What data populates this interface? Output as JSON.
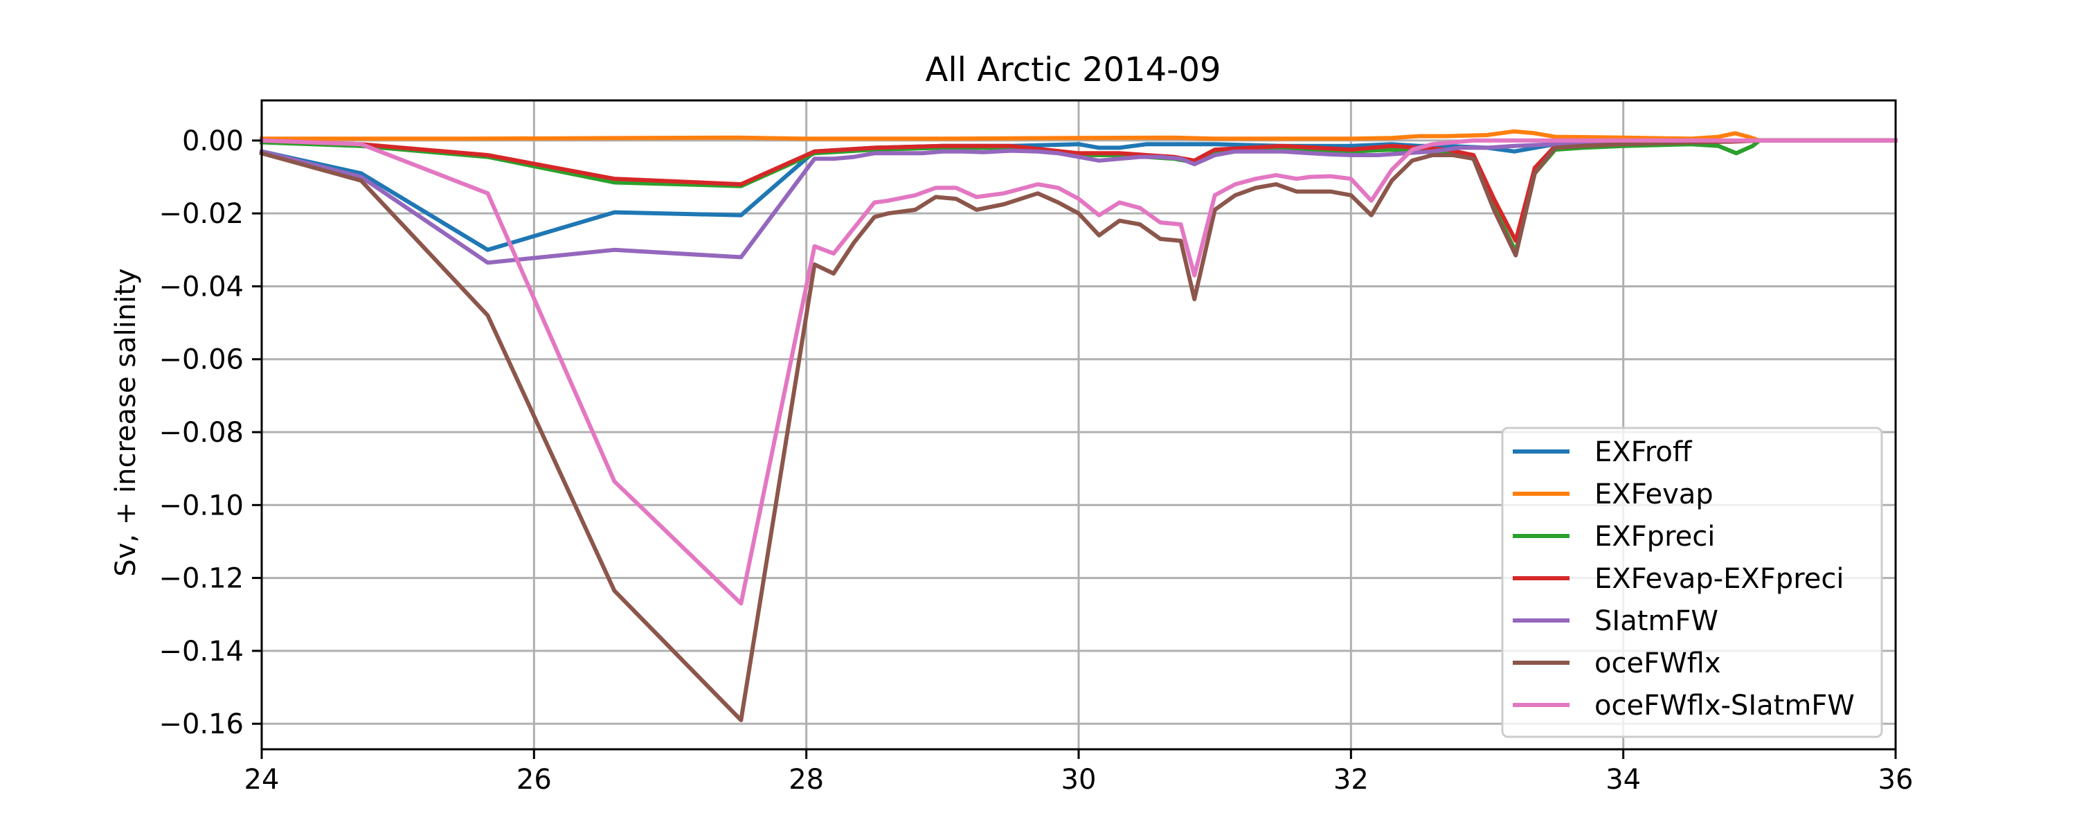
{
  "chart_data": {
    "type": "line",
    "title": "All Arctic 2014-09",
    "xlabel": "",
    "ylabel": "Sv, + increase salinity",
    "xlim": [
      24,
      36
    ],
    "ylim": [
      -0.167,
      0.011
    ],
    "xticks": [
      24,
      26,
      28,
      30,
      32,
      34,
      36
    ],
    "xtick_labels": [
      "24",
      "26",
      "28",
      "30",
      "32",
      "34",
      "36"
    ],
    "yticks": [
      0.0,
      -0.02,
      -0.04,
      -0.06,
      -0.08,
      -0.1,
      -0.12,
      -0.14,
      -0.16
    ],
    "ytick_labels": [
      "0.00",
      "−0.02",
      "−0.04",
      "−0.06",
      "−0.08",
      "−0.10",
      "−0.12",
      "−0.14",
      "−0.16"
    ],
    "grid": true,
    "legend_position": "lower-right",
    "series": [
      {
        "name": "EXFroff",
        "color": "#1f77b4",
        "x": [
          24.0,
          24.73,
          25.66,
          26.59,
          27.52,
          28.06,
          28.5,
          29.0,
          29.5,
          30.0,
          30.15,
          30.3,
          30.5,
          30.7,
          31.0,
          31.5,
          32.0,
          32.3,
          32.5,
          32.7,
          33.0,
          33.2,
          33.5,
          33.7,
          34.0,
          34.5,
          35.0,
          36.0
        ],
        "values": [
          -0.003,
          -0.009,
          -0.03,
          -0.0197,
          -0.0205,
          -0.003,
          -0.002,
          -0.0015,
          -0.0015,
          -0.001,
          -0.002,
          -0.002,
          -0.001,
          -0.001,
          -0.001,
          -0.0015,
          -0.0015,
          -0.001,
          -0.0015,
          -0.0015,
          -0.002,
          -0.003,
          -0.001,
          -0.001,
          -0.0005,
          -0.0003,
          0.0,
          0.0
        ]
      },
      {
        "name": "EXFevap",
        "color": "#ff7f0e",
        "x": [
          24.0,
          25.5,
          27.5,
          28.0,
          29.0,
          30.0,
          30.7,
          31.0,
          32.0,
          32.3,
          32.5,
          32.7,
          33.0,
          33.2,
          33.35,
          33.5,
          34.0,
          34.5,
          34.7,
          34.82,
          34.92,
          35.0,
          36.0
        ],
        "values": [
          0.0005,
          0.0005,
          0.0008,
          0.0005,
          0.0005,
          0.0007,
          0.0008,
          0.0005,
          0.0005,
          0.0007,
          0.0012,
          0.0012,
          0.0015,
          0.0025,
          0.002,
          0.001,
          0.0008,
          0.0005,
          0.001,
          0.002,
          0.001,
          0.0,
          0.0
        ]
      },
      {
        "name": "EXFpreci",
        "color": "#2ca02c",
        "x": [
          24.0,
          24.73,
          25.66,
          26.59,
          27.52,
          28.06,
          28.5,
          29.0,
          29.5,
          30.0,
          30.3,
          30.7,
          30.85,
          31.0,
          31.5,
          32.0,
          32.3,
          32.5,
          32.7,
          32.9,
          33.05,
          33.21,
          33.35,
          33.5,
          33.7,
          34.0,
          34.5,
          34.7,
          34.83,
          34.95,
          35.0,
          36.0
        ],
        "values": [
          -0.0005,
          -0.0015,
          -0.0045,
          -0.0115,
          -0.0125,
          -0.0035,
          -0.0025,
          -0.002,
          -0.002,
          -0.004,
          -0.004,
          -0.005,
          -0.006,
          -0.003,
          -0.002,
          -0.003,
          -0.0025,
          -0.003,
          -0.0035,
          -0.005,
          -0.018,
          -0.0305,
          -0.009,
          -0.0025,
          -0.002,
          -0.0015,
          -0.001,
          -0.0015,
          -0.0035,
          -0.0015,
          0.0,
          0.0
        ]
      },
      {
        "name": "EXFevap-EXFpreci",
        "color": "#d62728",
        "x": [
          24.0,
          24.73,
          25.66,
          26.59,
          27.52,
          28.06,
          28.5,
          29.0,
          29.5,
          30.0,
          30.3,
          30.7,
          30.85,
          31.0,
          31.5,
          32.0,
          32.3,
          32.5,
          32.7,
          32.9,
          33.05,
          33.21,
          33.35,
          33.5,
          33.7,
          34.0,
          34.5,
          34.8,
          35.0,
          36.0
        ],
        "values": [
          0.0,
          -0.001,
          -0.004,
          -0.0105,
          -0.012,
          -0.003,
          -0.002,
          -0.0015,
          -0.0015,
          -0.0035,
          -0.0035,
          -0.0045,
          -0.0055,
          -0.0025,
          -0.0015,
          -0.0025,
          -0.0015,
          -0.002,
          -0.0025,
          -0.004,
          -0.016,
          -0.0275,
          -0.0075,
          -0.0015,
          -0.001,
          -0.0008,
          -0.0005,
          -0.0003,
          0.0,
          0.0
        ]
      },
      {
        "name": "SIatmFW",
        "color": "#9467bd",
        "x": [
          24.0,
          24.73,
          25.66,
          26.59,
          27.52,
          28.06,
          28.2,
          28.35,
          28.5,
          28.7,
          28.85,
          29.0,
          29.15,
          29.3,
          29.5,
          29.7,
          29.85,
          30.0,
          30.15,
          30.3,
          30.45,
          30.6,
          30.75,
          30.85,
          31.0,
          31.15,
          31.3,
          31.5,
          31.7,
          31.85,
          32.0,
          32.2,
          32.4,
          32.6,
          32.8,
          33.0,
          33.2,
          33.5,
          34.0,
          34.5,
          35.0,
          36.0
        ],
        "values": [
          -0.003,
          -0.01,
          -0.0335,
          -0.03,
          -0.032,
          -0.005,
          -0.005,
          -0.0045,
          -0.0035,
          -0.0035,
          -0.0035,
          -0.003,
          -0.003,
          -0.0032,
          -0.0028,
          -0.003,
          -0.0035,
          -0.0045,
          -0.0055,
          -0.005,
          -0.0045,
          -0.0045,
          -0.005,
          -0.0065,
          -0.004,
          -0.003,
          -0.003,
          -0.003,
          -0.0035,
          -0.0038,
          -0.004,
          -0.004,
          -0.0035,
          -0.003,
          -0.002,
          -0.002,
          -0.0015,
          -0.001,
          -0.0008,
          -0.0005,
          0.0,
          0.0
        ]
      },
      {
        "name": "oceFWflx",
        "color": "#8c564b",
        "x": [
          24.0,
          24.73,
          25.66,
          26.59,
          27.52,
          28.06,
          28.2,
          28.35,
          28.5,
          28.6,
          28.8,
          28.95,
          29.1,
          29.25,
          29.45,
          29.7,
          29.85,
          30.0,
          30.15,
          30.3,
          30.45,
          30.6,
          30.75,
          30.85,
          31.0,
          31.15,
          31.3,
          31.45,
          31.6,
          31.7,
          31.85,
          32.0,
          32.15,
          32.3,
          32.45,
          32.6,
          32.75,
          32.9,
          33.05,
          33.21,
          33.35,
          33.5,
          33.7,
          34.0,
          34.5,
          35.0,
          36.0
        ],
        "values": [
          -0.0035,
          -0.011,
          -0.048,
          -0.1235,
          -0.159,
          -0.034,
          -0.0365,
          -0.028,
          -0.021,
          -0.02,
          -0.019,
          -0.0155,
          -0.016,
          -0.019,
          -0.0175,
          -0.0145,
          -0.017,
          -0.02,
          -0.026,
          -0.022,
          -0.023,
          -0.027,
          -0.0275,
          -0.0435,
          -0.019,
          -0.015,
          -0.013,
          -0.012,
          -0.014,
          -0.014,
          -0.014,
          -0.015,
          -0.0205,
          -0.011,
          -0.0055,
          -0.004,
          -0.004,
          -0.005,
          -0.019,
          -0.0315,
          -0.009,
          -0.002,
          -0.0015,
          -0.001,
          -0.0005,
          0.0,
          0.0
        ]
      },
      {
        "name": "oceFWflx-SIatmFW",
        "color": "#e377c2",
        "x": [
          24.0,
          24.73,
          25.66,
          26.59,
          27.52,
          28.06,
          28.2,
          28.35,
          28.5,
          28.6,
          28.8,
          28.95,
          29.1,
          29.25,
          29.45,
          29.7,
          29.85,
          30.0,
          30.15,
          30.3,
          30.45,
          30.6,
          30.75,
          30.85,
          31.0,
          31.15,
          31.3,
          31.45,
          31.6,
          31.7,
          31.85,
          32.0,
          32.15,
          32.3,
          32.45,
          32.6,
          32.75,
          32.9,
          33.0,
          33.5,
          34.0,
          35.0,
          36.0
        ],
        "values": [
          0.0,
          -0.001,
          -0.0145,
          -0.0935,
          -0.127,
          -0.029,
          -0.031,
          -0.024,
          -0.017,
          -0.0165,
          -0.015,
          -0.013,
          -0.013,
          -0.0155,
          -0.0145,
          -0.012,
          -0.013,
          -0.016,
          -0.0205,
          -0.017,
          -0.0185,
          -0.0225,
          -0.023,
          -0.037,
          -0.015,
          -0.012,
          -0.0105,
          -0.0095,
          -0.0105,
          -0.01,
          -0.0098,
          -0.0105,
          -0.0165,
          -0.008,
          -0.0025,
          -0.001,
          -0.0005,
          0.0,
          0.0,
          0.0,
          0.0,
          0.0,
          0.0
        ]
      }
    ]
  }
}
